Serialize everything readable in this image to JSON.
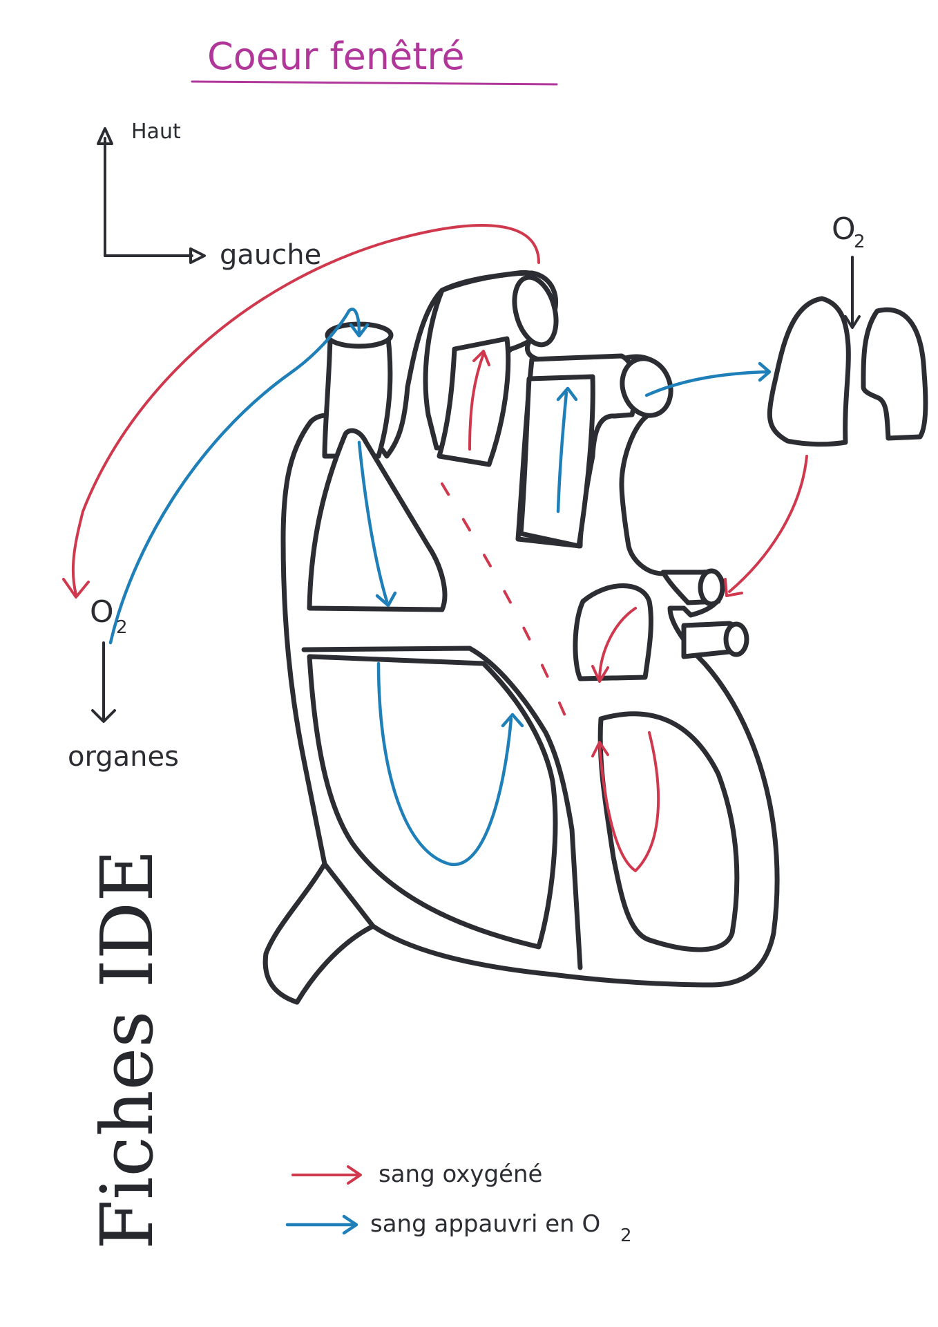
{
  "title": "Coeur fenêtré",
  "orientation": {
    "up_label": "Haut",
    "left_label": "gauche"
  },
  "body_side": {
    "o2_main": "O",
    "o2_sub": "2",
    "organs_label": "organes"
  },
  "lungs_side": {
    "o2_main": "O",
    "o2_sub": "2"
  },
  "legend": [
    {
      "label": "sang oxygéné",
      "color": "#d0384e"
    },
    {
      "label": "sang appauvri en O",
      "sub": "2",
      "color": "#1f7fb8"
    }
  ],
  "watermark": "Fiches IDE",
  "colors": {
    "title": "#b0369a",
    "outline": "#2b2d33",
    "oxygenated": "#d0384e",
    "deoxygenated": "#1f7fb8"
  }
}
